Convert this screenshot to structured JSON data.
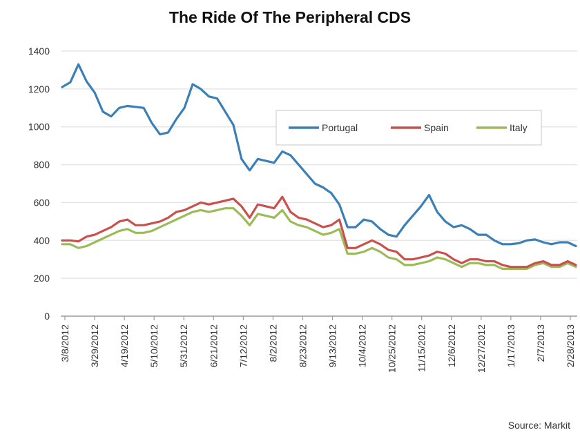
{
  "chart_data": {
    "type": "line",
    "title": "The Ride Of The Peripheral CDS",
    "source": "Source: Markit",
    "xlabel": "",
    "ylabel": "",
    "ylim": [
      0,
      1400
    ],
    "yticks": [
      "0",
      "200",
      "400",
      "600",
      "800",
      "1000",
      "1200",
      "1400"
    ],
    "grid": true,
    "legend_position": "top-right",
    "x_tick_labels": [
      "3/8/2012",
      "3/29/2012",
      "4/19/2012",
      "5/10/2012",
      "5/31/2012",
      "6/21/2012",
      "7/12/2012",
      "8/2/2012",
      "8/23/2012",
      "9/13/2012",
      "10/4/2012",
      "10/25/2012",
      "11/15/2012",
      "12/6/2012",
      "12/27/2012",
      "1/17/2013",
      "2/7/2013",
      "2/28/2013"
    ],
    "series": [
      {
        "name": "Portugal",
        "color": "#3a7fb5",
        "values": [
          1210,
          1235,
          1330,
          1240,
          1180,
          1080,
          1055,
          1100,
          1110,
          1105,
          1100,
          1020,
          960,
          970,
          1040,
          1100,
          1225,
          1200,
          1160,
          1150,
          1080,
          1010,
          830,
          770,
          830,
          820,
          810,
          870,
          850,
          800,
          750,
          700,
          680,
          650,
          590,
          470,
          470,
          510,
          500,
          460,
          430,
          420,
          480,
          530,
          580,
          640,
          550,
          500,
          470,
          480,
          460,
          430,
          430,
          400,
          380,
          380,
          385,
          400,
          405,
          390,
          380,
          390,
          390,
          370
        ]
      },
      {
        "name": "Spain",
        "color": "#c9504c",
        "values": [
          400,
          400,
          395,
          420,
          430,
          450,
          470,
          500,
          510,
          480,
          480,
          490,
          500,
          520,
          550,
          560,
          580,
          600,
          590,
          600,
          610,
          620,
          580,
          520,
          590,
          580,
          570,
          630,
          550,
          520,
          510,
          490,
          470,
          480,
          510,
          360,
          360,
          380,
          400,
          380,
          350,
          340,
          300,
          300,
          310,
          320,
          340,
          330,
          300,
          280,
          300,
          300,
          290,
          290,
          270,
          260,
          260,
          260,
          280,
          290,
          270,
          270,
          290,
          270
        ]
      },
      {
        "name": "Italy",
        "color": "#9bbb59",
        "values": [
          380,
          380,
          360,
          370,
          390,
          410,
          430,
          450,
          460,
          440,
          440,
          450,
          470,
          490,
          510,
          530,
          550,
          560,
          550,
          560,
          570,
          570,
          530,
          480,
          540,
          530,
          520,
          560,
          500,
          480,
          470,
          450,
          430,
          440,
          460,
          330,
          330,
          340,
          360,
          340,
          310,
          300,
          270,
          270,
          280,
          290,
          310,
          300,
          280,
          260,
          280,
          280,
          270,
          270,
          250,
          250,
          250,
          250,
          270,
          280,
          260,
          260,
          280,
          260
        ]
      }
    ]
  }
}
